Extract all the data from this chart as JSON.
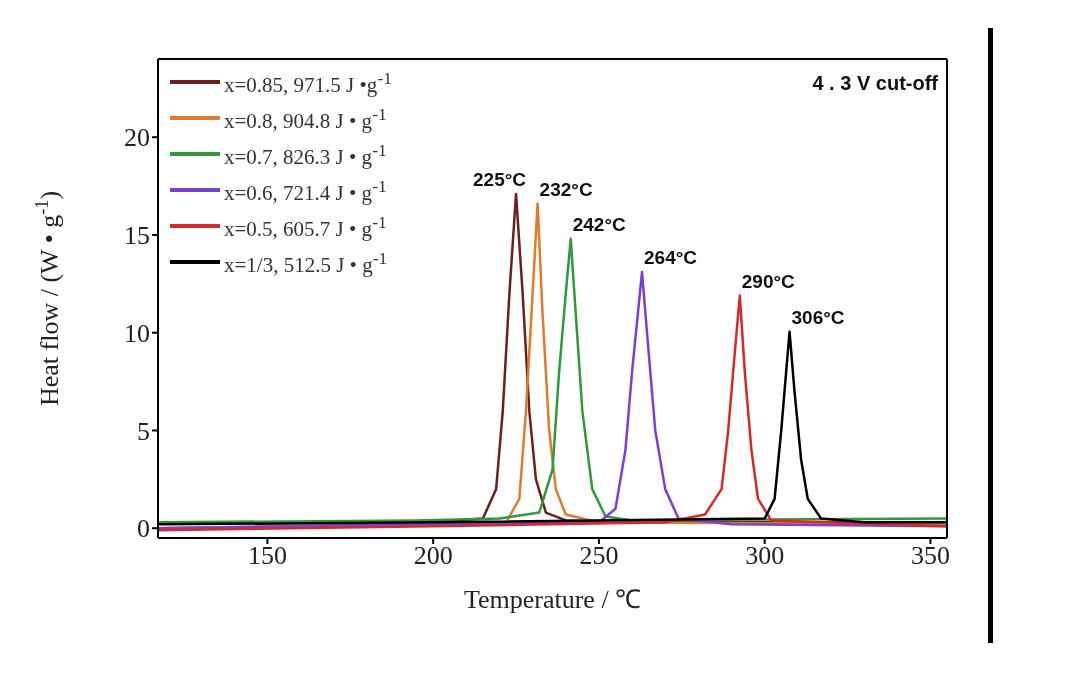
{
  "chart_data": {
    "type": "line",
    "xlabel": "Temperature /  ℃",
    "ylabel": "Heat flow / (W • g$^{-1}$)",
    "xlim": [
      117,
      355
    ],
    "xticks": [
      150,
      200,
      250,
      300,
      350
    ],
    "ylim": [
      -0.5,
      24
    ],
    "yticks": [
      0,
      5,
      10,
      15,
      20
    ],
    "legend": "top left",
    "line_style": "solid",
    "series": [
      {
        "name": "x=0.85, 971.5 J •g$^{-1}$",
        "color": "#6b1f1f",
        "x": [
          117,
          180,
          200,
          215,
          219,
          221,
          223,
          225,
          227,
          229,
          231,
          234,
          240,
          260,
          300,
          355
        ],
        "values": [
          0,
          0.1,
          0.3,
          0.5,
          2,
          6,
          12,
          17.1,
          12,
          6,
          2.5,
          0.8,
          0.4,
          0.3,
          0.3,
          0.3
        ]
      },
      {
        "name": "x=0.8, 904.8 J • g$^{-1}$",
        "color": "#e07b2a",
        "x": [
          117,
          200,
          222,
          226,
          228,
          230,
          231.5,
          233,
          235,
          237,
          240,
          250,
          355
        ],
        "values": [
          0,
          0.2,
          0.3,
          1.5,
          6,
          12,
          16.6,
          11,
          5,
          2,
          0.7,
          0.3,
          0.2
        ]
      },
      {
        "name": "x=0.7, 826.3 J • g$^{-1}$",
        "color": "#2e9a3a",
        "x": [
          117,
          195,
          220,
          232,
          236,
          238,
          240,
          241.5,
          243,
          245,
          248,
          252,
          260,
          355
        ],
        "values": [
          0.3,
          0.4,
          0.5,
          0.8,
          3,
          8,
          12,
          14.8,
          11,
          6,
          2,
          0.6,
          0.4,
          0.5
        ]
      },
      {
        "name": "x=0.6, 721.4 J • g$^{-1}$",
        "color": "#7b3fd6",
        "x": [
          117,
          200,
          250,
          255,
          258,
          260,
          263,
          265,
          267,
          270,
          274,
          290,
          355
        ],
        "values": [
          0,
          0.2,
          0.3,
          1,
          4,
          8,
          13.1,
          9,
          5,
          2,
          0.5,
          0.2,
          0.1
        ]
      },
      {
        "name": "x=0.5, 605.7 J • g$^{-1}$",
        "color": "#d62a2a",
        "x": [
          117,
          200,
          270,
          282,
          287,
          289,
          291,
          292.5,
          294,
          296,
          298,
          302,
          355
        ],
        "values": [
          -0.1,
          0.1,
          0.3,
          0.7,
          2,
          5,
          9,
          11.9,
          8,
          4,
          1.5,
          0.4,
          0.1
        ]
      },
      {
        "name": "x=1/3, 512.5 J • g$^{-1}$",
        "color": "#000000",
        "x": [
          117,
          200,
          300,
          303,
          305,
          307.5,
          309,
          311,
          313,
          317,
          330,
          355
        ],
        "values": [
          0.2,
          0.3,
          0.5,
          1.5,
          5,
          10.05,
          7,
          3.5,
          1.5,
          0.5,
          0.3,
          0.3
        ]
      }
    ],
    "annotations": [
      "4 . 3 V cut-off",
      {
        "text": "225°C",
        "x": 225,
        "y": 17.1
      },
      {
        "text": "232°C",
        "x": 231.5,
        "y": 16.6
      },
      {
        "text": "242°C",
        "x": 241.5,
        "y": 14.8
      },
      {
        "text": "264°C",
        "x": 263,
        "y": 13.1
      },
      {
        "text": "290°C",
        "x": 292.5,
        "y": 11.9
      },
      {
        "text": "306°C",
        "x": 307.5,
        "y": 10.05
      }
    ]
  }
}
